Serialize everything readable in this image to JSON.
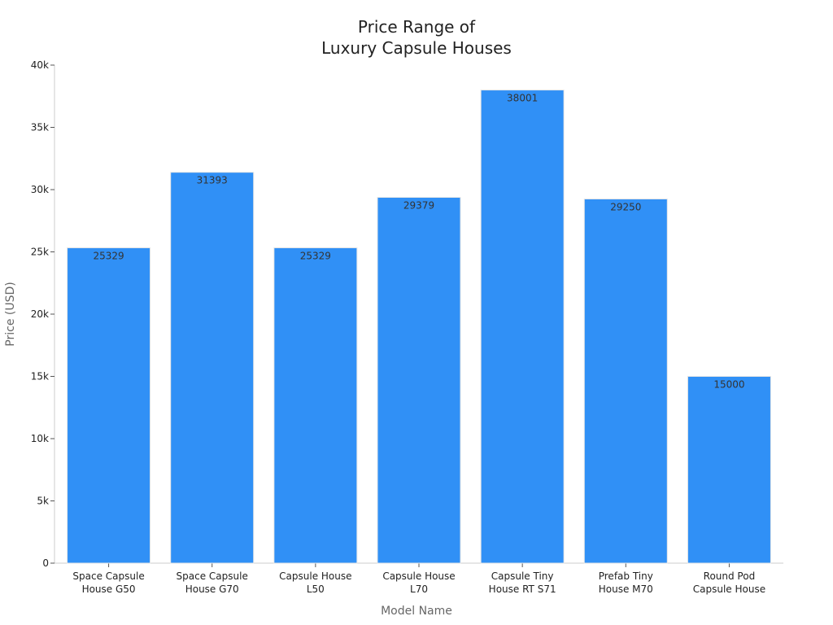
{
  "chart_data": {
    "type": "bar",
    "title_lines": [
      "Price Range of",
      "Luxury Capsule Houses"
    ],
    "xlabel": "Model Name",
    "ylabel": "Price (USD)",
    "categories": [
      [
        "Space Capsule",
        "House G50"
      ],
      [
        "Space Capsule",
        "House G70"
      ],
      [
        "Capsule House",
        "L50"
      ],
      [
        "Capsule House",
        "L70"
      ],
      [
        "Capsule Tiny",
        "House RT S71"
      ],
      [
        "Prefab Tiny",
        "House M70"
      ],
      [
        "Round Pod",
        "Capsule House"
      ]
    ],
    "values": [
      25329,
      31393,
      25329,
      29379,
      38001,
      29250,
      15000
    ],
    "ylim": [
      0,
      40000
    ],
    "yticks": [
      0,
      5000,
      10000,
      15000,
      20000,
      25000,
      30000,
      35000,
      40000
    ],
    "ytick_labels": [
      "0",
      "5k",
      "10k",
      "15k",
      "20k",
      "25k",
      "30k",
      "35k",
      "40k"
    ],
    "bar_color": "#3090f6",
    "grid": false,
    "legend": false
  }
}
